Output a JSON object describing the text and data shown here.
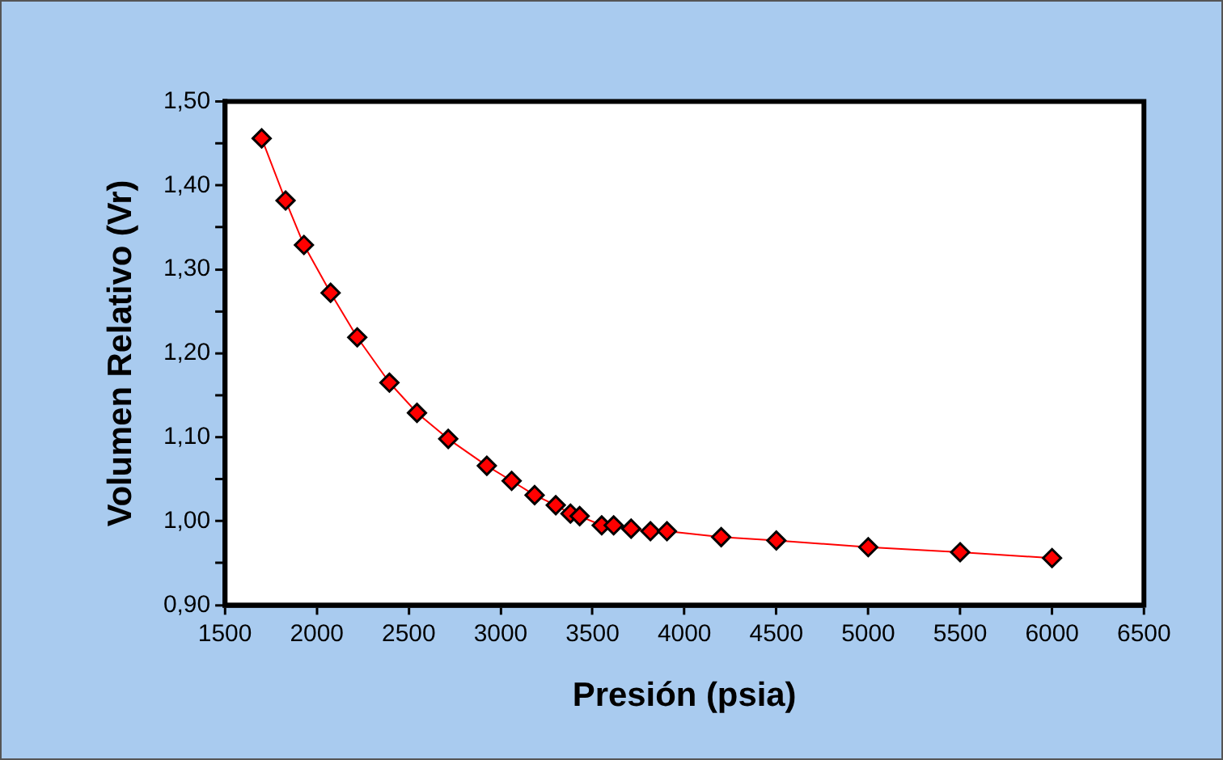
{
  "chart_data": {
    "type": "line",
    "xlabel": "Presión (psia)",
    "ylabel": "Volumen Relativo (Vr)",
    "x": [
      1700,
      1830,
      1930,
      2075,
      2220,
      2395,
      2545,
      2715,
      2925,
      3060,
      3185,
      3300,
      3380,
      3430,
      3550,
      3615,
      3710,
      3815,
      3905,
      4200,
      4500,
      5000,
      5500,
      6000
    ],
    "series": [
      {
        "color": "#ff0000",
        "values": [
          1.456,
          1.382,
          1.329,
          1.272,
          1.219,
          1.165,
          1.129,
          1.098,
          1.066,
          1.048,
          1.031,
          1.019,
          1.009,
          1.006,
          0.995,
          0.995,
          0.991,
          0.988,
          0.988,
          0.981,
          0.977,
          0.969,
          0.963,
          0.956
        ]
      }
    ],
    "xlim": [
      1500,
      6500
    ],
    "xticks": [
      1500,
      2000,
      2500,
      3000,
      3500,
      4000,
      4500,
      5000,
      5500,
      6000,
      6500
    ],
    "ylim": [
      0.9,
      1.5
    ],
    "yticks": [
      {
        "value": 0.9,
        "label": "0,90"
      },
      {
        "value": 0.95,
        "label": null
      },
      {
        "value": 1.0,
        "label": "1,00"
      },
      {
        "value": 1.05,
        "label": null
      },
      {
        "value": 1.1,
        "label": "1,10"
      },
      {
        "value": 1.15,
        "label": null
      },
      {
        "value": 1.2,
        "label": "1,20"
      },
      {
        "value": 1.25,
        "label": null
      },
      {
        "value": 1.3,
        "label": "1,30"
      },
      {
        "value": 1.35,
        "label": null
      },
      {
        "value": 1.4,
        "label": "1,40"
      },
      {
        "value": 1.45,
        "label": null
      },
      {
        "value": 1.5,
        "label": "1,50"
      }
    ],
    "grid": false,
    "legend": false,
    "marker": "diamond",
    "line_style": "solid"
  }
}
